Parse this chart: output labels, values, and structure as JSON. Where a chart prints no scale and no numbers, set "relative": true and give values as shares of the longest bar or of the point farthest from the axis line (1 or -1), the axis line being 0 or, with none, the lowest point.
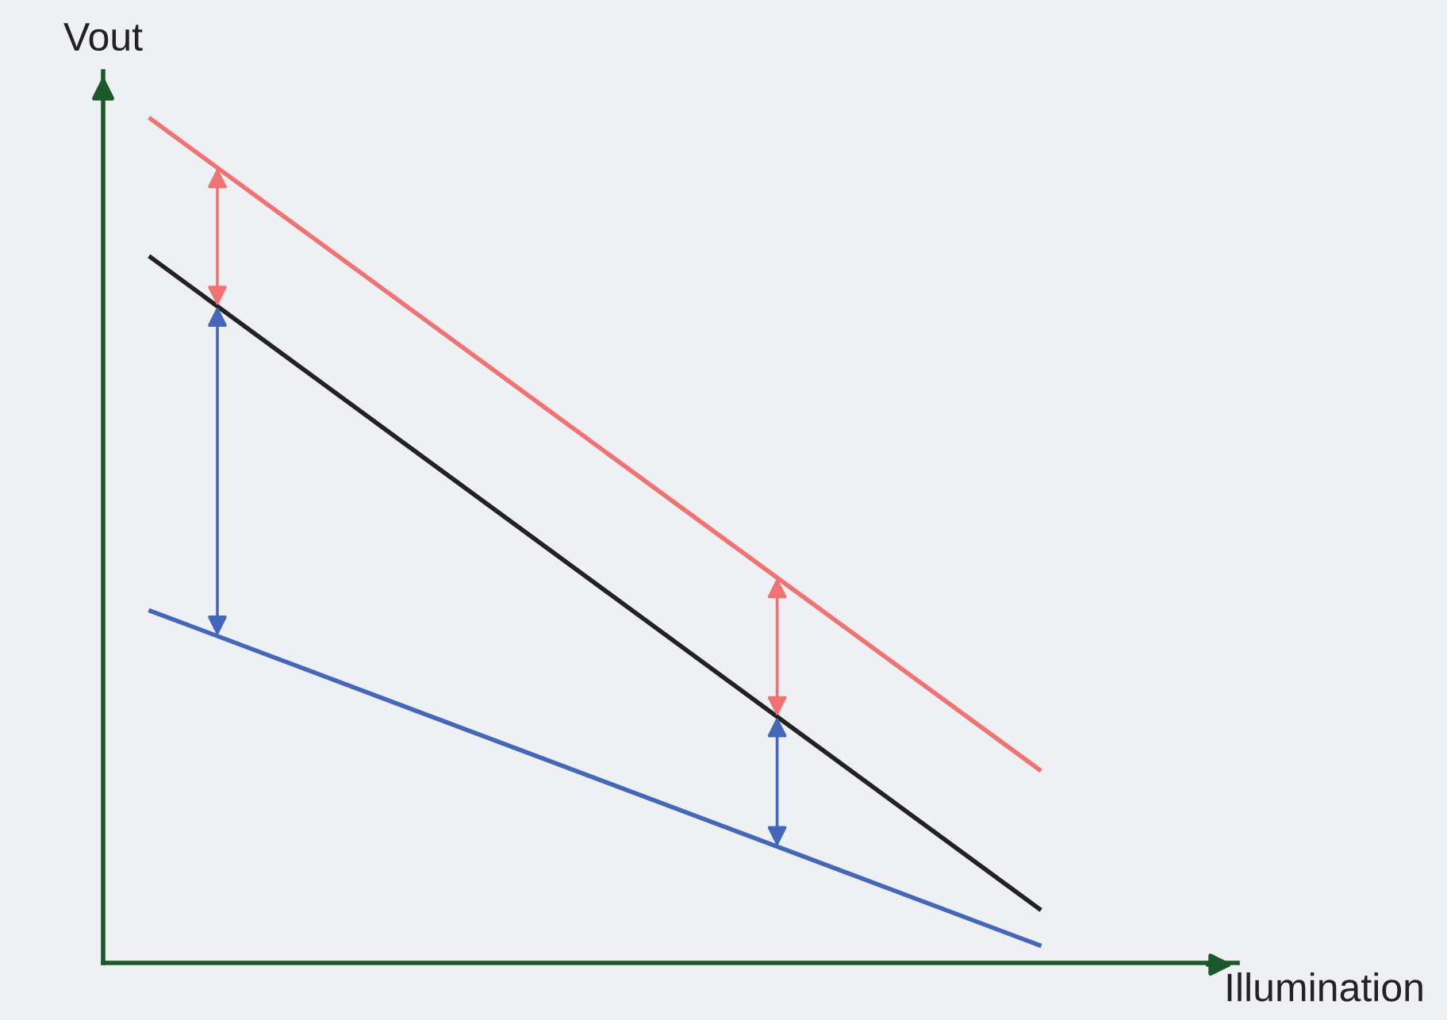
{
  "chart_data": {
    "type": "line",
    "relative": true,
    "xlabel": "Illumination",
    "ylabel": "Vout",
    "categories": [
      null,
      null
    ],
    "series": [
      {
        "color": "#f07272",
        "values": [
          1,
          0.229
        ]
      },
      {
        "color": "#222222",
        "values": [
          0.836,
          0.064
        ]
      },
      {
        "color": "#4466bb",
        "values": [
          0.417,
          0.021
        ]
      }
    ],
    "legend": false,
    "marker": "none",
    "line_style": "solid"
  }
}
